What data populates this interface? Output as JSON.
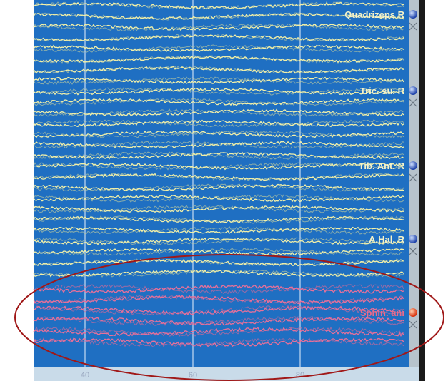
{
  "channels": [
    {
      "label": "Quadrizeps R"
    },
    {
      "label": "Tric. su. R"
    },
    {
      "label": "Tib. Ant. R"
    },
    {
      "label": "A.Hal. R"
    },
    {
      "label": "Sphin. ani"
    }
  ],
  "axis": {
    "ticks": [
      40,
      60,
      80
    ]
  }
}
